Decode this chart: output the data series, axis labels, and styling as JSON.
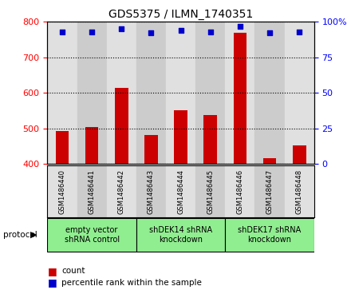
{
  "title": "GDS5375 / ILMN_1740351",
  "samples": [
    "GSM1486440",
    "GSM1486441",
    "GSM1486442",
    "GSM1486443",
    "GSM1486444",
    "GSM1486445",
    "GSM1486446",
    "GSM1486447",
    "GSM1486448"
  ],
  "counts": [
    492,
    504,
    614,
    481,
    552,
    537,
    770,
    415,
    453
  ],
  "percentiles": [
    93,
    93,
    95,
    92,
    94,
    93,
    97,
    92,
    93
  ],
  "ylim_left": [
    400,
    800
  ],
  "ylim_right": [
    0,
    100
  ],
  "yticks_left": [
    400,
    500,
    600,
    700,
    800
  ],
  "yticks_right": [
    0,
    25,
    50,
    75,
    100
  ],
  "groups": [
    {
      "label": "empty vector\nshRNA control",
      "start": 0,
      "end": 2,
      "color": "#90ee90"
    },
    {
      "label": "shDEK14 shRNA\nknockdown",
      "start": 3,
      "end": 5,
      "color": "#90ee90"
    },
    {
      "label": "shDEK17 shRNA\nknockdown",
      "start": 6,
      "end": 8,
      "color": "#90ee90"
    }
  ],
  "bar_color": "#cc0000",
  "dot_color": "#0000cc",
  "bg_color_light": "#e0e0e0",
  "bg_color_dark": "#cccccc",
  "protocol_label": "protocol",
  "legend_count_label": "count",
  "legend_pct_label": "percentile rank within the sample"
}
